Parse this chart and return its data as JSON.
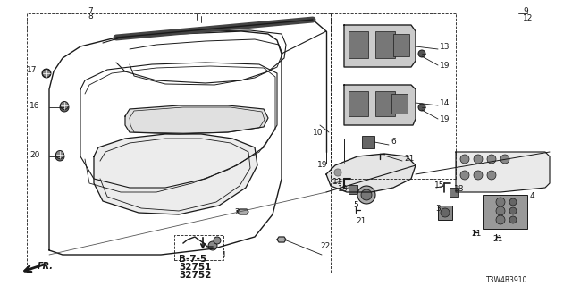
{
  "bg_color": "#ffffff",
  "line_color": "#1a1a1a",
  "diagram_code": "T3W4B3910",
  "figsize": [
    6.4,
    3.2
  ],
  "dpi": 100
}
